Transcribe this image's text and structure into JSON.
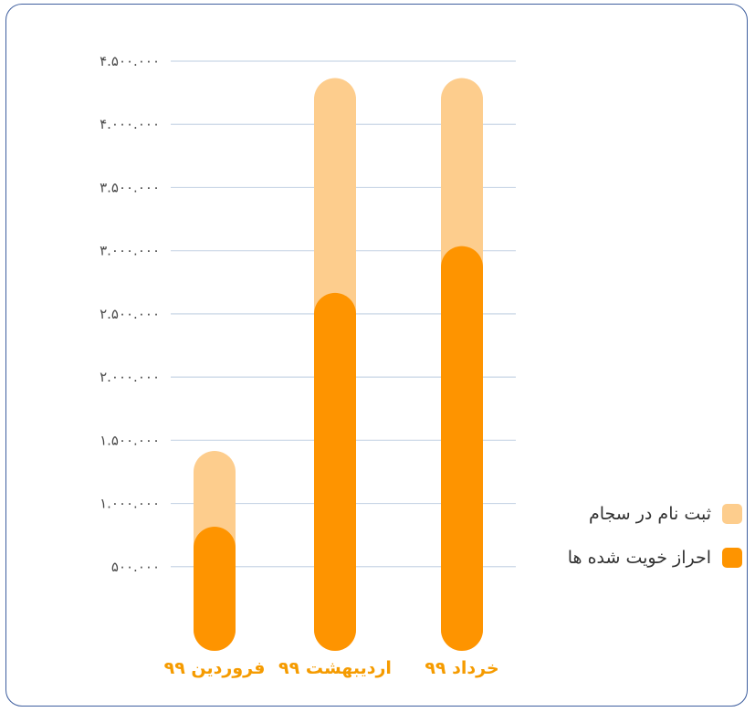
{
  "chart_data": {
    "type": "bar",
    "stacked": "overlay",
    "categories": [
      "فروردین ۹۹",
      "اردیبهشت ۹۹",
      "خرداد ۹۹"
    ],
    "series": [
      {
        "name": "ثبت نام در سجام",
        "color": "#fdcd8d",
        "values": [
          1250000,
          4200000,
          4200000
        ]
      },
      {
        "name": "احراز خویت شده ها",
        "color": "#fe9400",
        "values": [
          650000,
          2500000,
          2870000
        ]
      }
    ],
    "yticks": [
      "۵۰۰.۰۰۰",
      "۱.۰۰۰.۰۰۰",
      "۱.۵۰۰.۰۰۰",
      "۲.۰۰۰.۰۰۰",
      "۲.۵۰۰.۰۰۰",
      "۳.۰۰۰.۰۰۰",
      "۳.۵۰۰.۰۰۰",
      "۴.۰۰۰.۰۰۰",
      "۴.۵۰۰.۰۰۰"
    ],
    "ytick_values": [
      500000,
      1000000,
      1500000,
      2000000,
      2500000,
      3000000,
      3500000,
      4000000,
      4500000
    ],
    "ylim": [
      0,
      4500000
    ],
    "grid": true,
    "gridline_color": "#c9d6e6",
    "category_label_color": "#f59b00",
    "legend_position": "right"
  }
}
